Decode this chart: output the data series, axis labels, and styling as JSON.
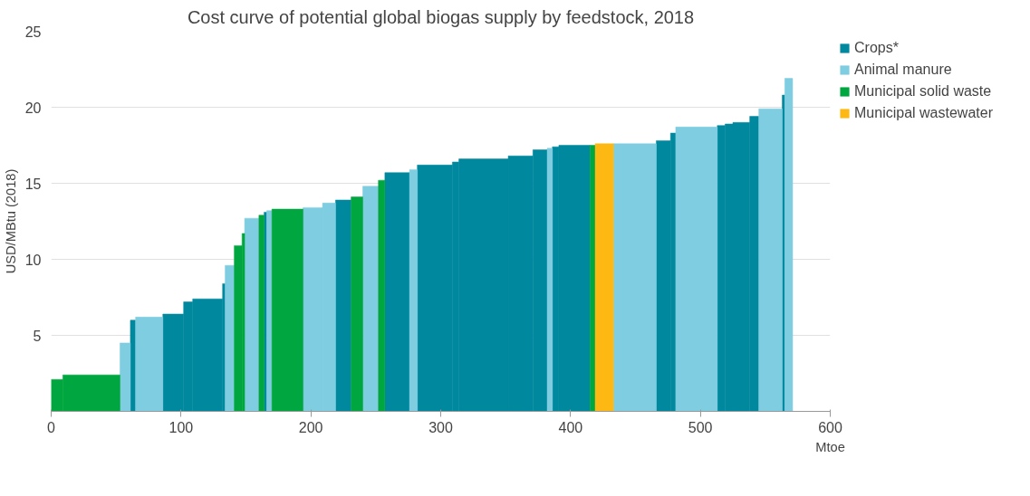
{
  "chart_data": {
    "type": "histogram",
    "title": "Cost curve of potential global biogas supply by feedstock, 2018",
    "xlabel": "Mtoe",
    "ylabel": "USD/MBtu (2018)",
    "bins": [
      0,
      9,
      53,
      61,
      65,
      86,
      102,
      109,
      132,
      134,
      141,
      147,
      149,
      160,
      164,
      166,
      170,
      194,
      209,
      219,
      231,
      240,
      252,
      257,
      276,
      282,
      309,
      314,
      352,
      371,
      382,
      386,
      391,
      415,
      419,
      433,
      466,
      477,
      481,
      513,
      519,
      525,
      538,
      545,
      563,
      565,
      571
    ],
    "series": [
      {
        "name": "Crops*",
        "color": "#00889e",
        "values": [
          null,
          null,
          null,
          6.0,
          null,
          6.4,
          7.2,
          7.4,
          8.4,
          null,
          null,
          null,
          null,
          null,
          13.1,
          null,
          null,
          null,
          null,
          13.9,
          null,
          null,
          null,
          15.7,
          null,
          16.2,
          16.4,
          16.6,
          16.8,
          17.2,
          null,
          17.4,
          17.5,
          null,
          null,
          null,
          17.8,
          18.3,
          null,
          18.8,
          18.9,
          19.0,
          19.4,
          null,
          20.8,
          null
        ]
      },
      {
        "name": "Animal manure",
        "color": "#7fcde0",
        "values": [
          null,
          null,
          4.5,
          null,
          6.2,
          null,
          null,
          null,
          null,
          9.6,
          null,
          null,
          12.7,
          null,
          null,
          13.2,
          null,
          13.4,
          13.7,
          null,
          null,
          14.8,
          null,
          null,
          15.9,
          null,
          null,
          null,
          null,
          null,
          17.3,
          null,
          null,
          null,
          null,
          17.6,
          null,
          null,
          18.7,
          null,
          null,
          null,
          null,
          19.9,
          null,
          21.9
        ]
      },
      {
        "name": "Municipal solid waste",
        "color": "#00a63f",
        "values": [
          2.1,
          2.4,
          null,
          null,
          null,
          null,
          null,
          null,
          null,
          null,
          10.9,
          11.7,
          null,
          12.9,
          null,
          null,
          13.3,
          null,
          null,
          null,
          14.1,
          null,
          15.2,
          null,
          null,
          null,
          null,
          null,
          null,
          null,
          null,
          null,
          null,
          17.5,
          null,
          null,
          null,
          null,
          null,
          null,
          null,
          null,
          null,
          null,
          null,
          null
        ]
      },
      {
        "name": "Municipal wastewater",
        "color": "#fdb813",
        "values": [
          null,
          null,
          null,
          null,
          null,
          null,
          null,
          null,
          null,
          null,
          null,
          null,
          null,
          null,
          null,
          null,
          null,
          null,
          null,
          null,
          null,
          null,
          null,
          null,
          null,
          null,
          null,
          null,
          null,
          null,
          null,
          null,
          null,
          null,
          17.6,
          null,
          null,
          null,
          null,
          null,
          null,
          null,
          null,
          null,
          null,
          null
        ]
      }
    ],
    "xlim": [
      0,
      600
    ],
    "xticks": [
      0,
      100,
      200,
      300,
      400,
      500,
      600
    ],
    "ylim": [
      0,
      25
    ],
    "yticks": [
      5,
      10,
      15,
      20,
      25
    ],
    "grid": "y",
    "legend": "top right"
  }
}
